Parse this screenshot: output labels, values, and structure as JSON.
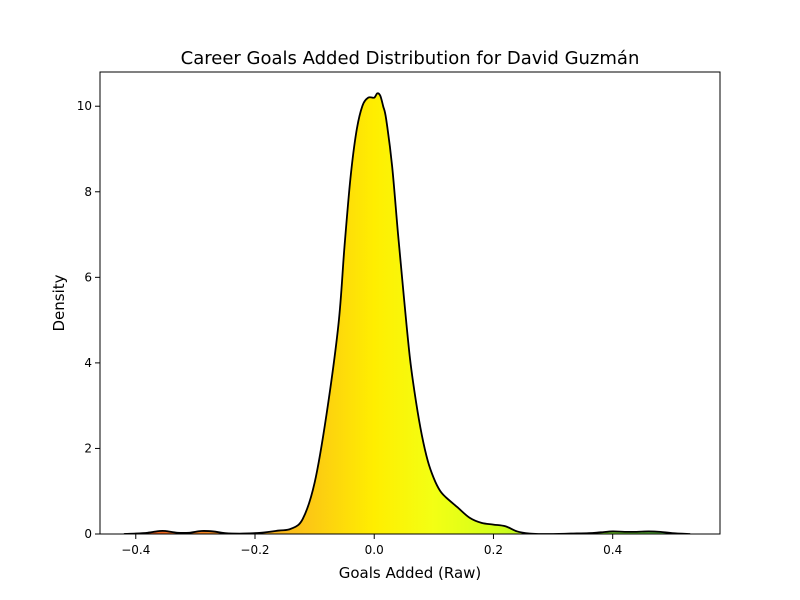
{
  "chart_data": {
    "type": "area",
    "title": "Career Goals Added Distribution for David Guzmán",
    "xlabel": "Goals Added (Raw)",
    "ylabel": "Density",
    "xlim": [
      -0.46,
      0.58
    ],
    "ylim": [
      0,
      10.8
    ],
    "grid": false,
    "legend": "none",
    "xticks": [
      -0.4,
      -0.2,
      0.0,
      0.2,
      0.4
    ],
    "xtick_labels": [
      "−0.4",
      "−0.2",
      "0.0",
      "0.2",
      "0.4"
    ],
    "yticks": [
      0,
      2,
      4,
      6,
      8,
      10
    ],
    "ytick_labels": [
      "0",
      "2",
      "4",
      "6",
      "8",
      "10"
    ],
    "line_color": "#000000",
    "fill_gradient": {
      "stops": [
        {
          "x": -0.42,
          "color": "#e64a19"
        },
        {
          "x": -0.2,
          "color": "#f9a825"
        },
        {
          "x": 0.0,
          "color": "#ffee00"
        },
        {
          "x": 0.1,
          "color": "#f3ff14"
        },
        {
          "x": 0.2,
          "color": "#d4ff1a"
        },
        {
          "x": 0.4,
          "color": "#78dd2c"
        },
        {
          "x": 0.53,
          "color": "#4caf50"
        }
      ]
    },
    "x": [
      -0.42,
      -0.4,
      -0.38,
      -0.36,
      -0.35,
      -0.33,
      -0.31,
      -0.29,
      -0.27,
      -0.25,
      -0.22,
      -0.19,
      -0.16,
      -0.14,
      -0.12,
      -0.1,
      -0.08,
      -0.06,
      -0.05,
      -0.04,
      -0.03,
      -0.02,
      -0.01,
      0.0,
      0.005,
      0.01,
      0.015,
      0.02,
      0.03,
      0.04,
      0.05,
      0.06,
      0.07,
      0.08,
      0.09,
      0.1,
      0.11,
      0.12,
      0.14,
      0.16,
      0.18,
      0.2,
      0.22,
      0.24,
      0.26,
      0.28,
      0.3,
      0.33,
      0.36,
      0.38,
      0.4,
      0.42,
      0.44,
      0.46,
      0.48,
      0.5,
      0.53
    ],
    "values": [
      0.0,
      0.01,
      0.03,
      0.07,
      0.07,
      0.03,
      0.03,
      0.07,
      0.06,
      0.02,
      0.01,
      0.03,
      0.08,
      0.12,
      0.35,
      1.2,
      2.8,
      4.9,
      6.7,
      8.3,
      9.4,
      10.0,
      10.2,
      10.2,
      10.3,
      10.25,
      10.0,
      9.7,
      8.6,
      7.0,
      5.5,
      4.1,
      3.1,
      2.3,
      1.7,
      1.3,
      1.02,
      0.86,
      0.62,
      0.38,
      0.26,
      0.22,
      0.18,
      0.06,
      0.01,
      0.0,
      0.0,
      0.01,
      0.02,
      0.04,
      0.06,
      0.05,
      0.05,
      0.06,
      0.05,
      0.02,
      0.0
    ]
  }
}
